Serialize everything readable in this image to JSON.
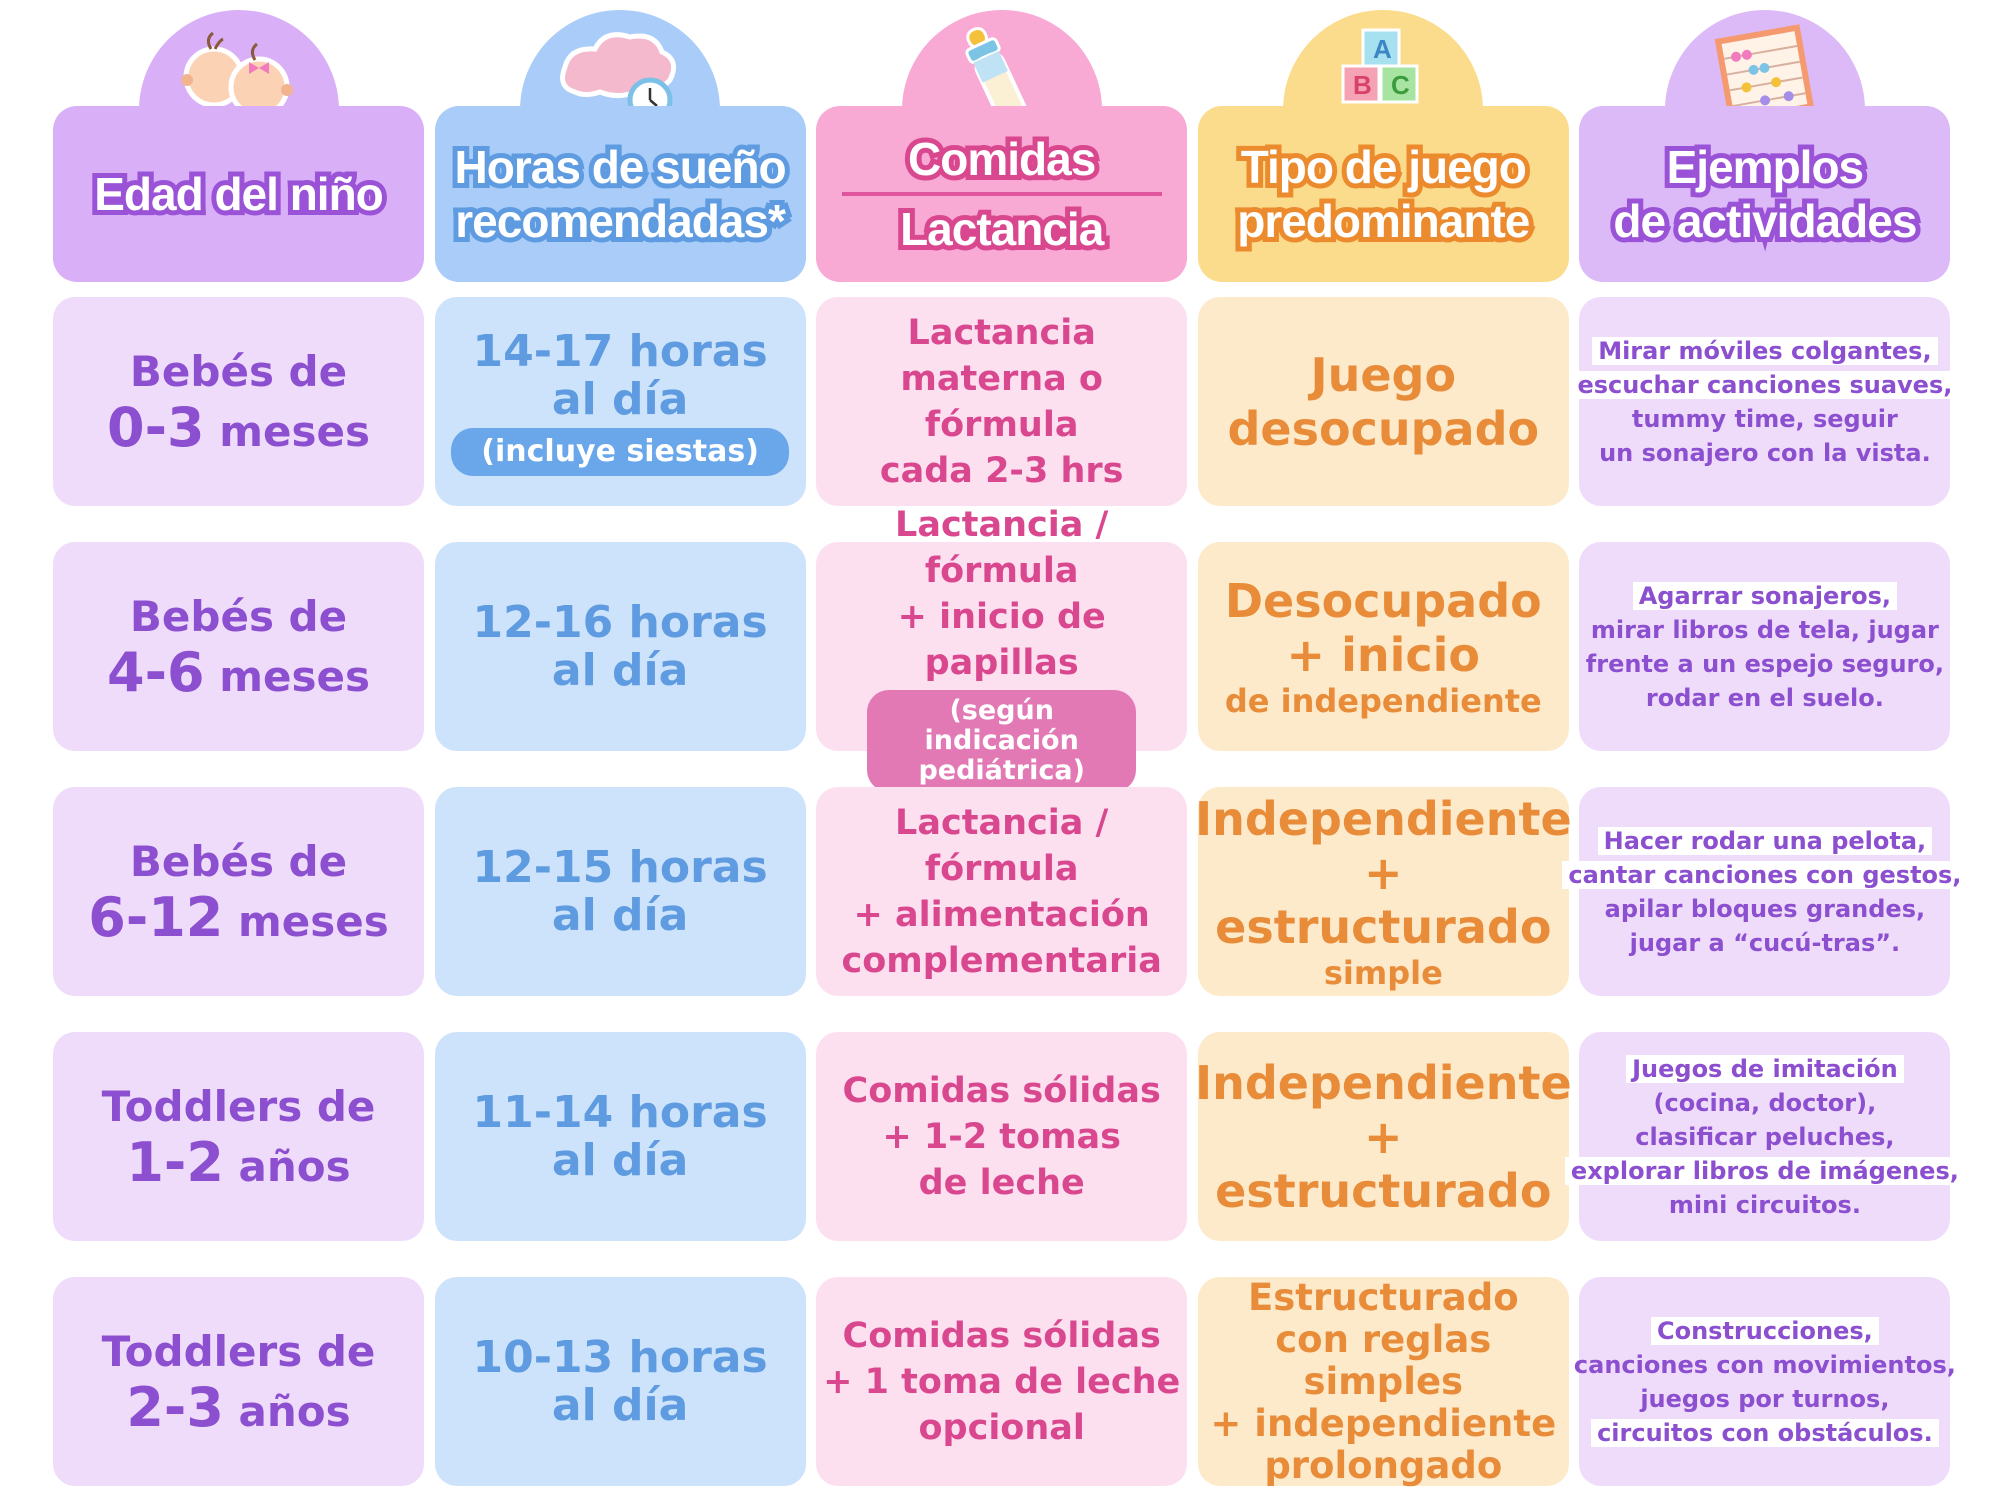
{
  "colors": {
    "age": "#8b4fcf",
    "sleep": "#5e9be0",
    "food": "#d9478f",
    "play": "#e88c3a",
    "activities": "#8b4fcf"
  },
  "headers": [
    {
      "lines": [
        "Edad del niño"
      ],
      "icon": "baby-faces-icon",
      "dome": "#d9b0f8",
      "bg": "#d9b0f8",
      "stroke": "#9a52d6"
    },
    {
      "lines": [
        "Horas de sueño",
        "recomendadas*"
      ],
      "icon": "cloud-clock-icon",
      "dome": "#a9cdf8",
      "bg": "#a9cdf8",
      "stroke": "#5e9be0"
    },
    {
      "lines": [
        "Comidas",
        "Lactancia"
      ],
      "divider": true,
      "icon": "baby-bottle-icon",
      "dome": "#f8a9d4",
      "bg": "#f8a9d4",
      "stroke": "#d9478f"
    },
    {
      "lines": [
        "Tipo de juego",
        "predominante"
      ],
      "icon": "abc-blocks-icon",
      "dome": "#fbdc8c",
      "bg": "#fbdc8c",
      "stroke": "#ec8a2e"
    },
    {
      "lines": [
        "Ejemplos",
        "de actividades"
      ],
      "icon": "abacus-icon",
      "dome": "#dcbaf8",
      "bg": "#dcbaf8",
      "stroke": "#9a52d6"
    }
  ],
  "rows": [
    {
      "age": {
        "prefix": "Bebés de",
        "num": "0-3",
        "unit": "meses"
      },
      "sleep": {
        "lines": [
          "14-17 horas",
          "al día"
        ],
        "pill": "(incluye siestas)"
      },
      "food": {
        "lines": [
          "Lactancia",
          "materna o fórmula",
          "cada 2-3 hrs"
        ]
      },
      "play": {
        "big": [
          "Juego",
          "desocupado"
        ],
        "small": ""
      },
      "activities": {
        "lines": [
          "Mirar móviles colgantes,",
          "escuchar canciones suaves,",
          "tummy time, seguir",
          "un sonajero con la vista."
        ],
        "highlight": [
          true,
          true,
          false,
          false
        ]
      }
    },
    {
      "age": {
        "prefix": "Bebés de",
        "num": "4-6",
        "unit": "meses"
      },
      "sleep": {
        "lines": [
          "12-16 horas",
          "al día"
        ]
      },
      "food": {
        "lines": [
          "Lactancia / fórmula",
          "+ inicio de papillas"
        ],
        "pill": "(según indicación pediátrica)"
      },
      "play": {
        "big": [
          "Desocupado",
          "+ inicio"
        ],
        "small": "de independiente"
      },
      "activities": {
        "lines": [
          "Agarrar sonajeros,",
          "mirar libros de tela, jugar",
          "frente a un espejo seguro,",
          "rodar en el suelo."
        ],
        "highlight": [
          true,
          false,
          false,
          false
        ]
      }
    },
    {
      "age": {
        "prefix": "Bebés de",
        "num": "6-12",
        "unit": "meses"
      },
      "sleep": {
        "lines": [
          "12-15 horas",
          "al día"
        ]
      },
      "food": {
        "lines": [
          "Lactancia / fórmula",
          "+ alimentación",
          "complementaria"
        ]
      },
      "play": {
        "big": [
          "Independiente",
          "+ estructurado"
        ],
        "small": "simple"
      },
      "activities": {
        "lines": [
          "Hacer rodar una pelota,",
          "cantar canciones con gestos,",
          "apilar bloques grandes,",
          "jugar a “cucú-tras”."
        ],
        "highlight": [
          true,
          true,
          false,
          false
        ]
      }
    },
    {
      "age": {
        "prefix": "Toddlers de",
        "num": "1-2",
        "unit": "años"
      },
      "sleep": {
        "lines": [
          "11-14 horas",
          "al día"
        ]
      },
      "food": {
        "lines": [
          "Comidas sólidas",
          "+ 1-2 tomas",
          "de leche"
        ]
      },
      "play": {
        "big": [
          "Independiente",
          "+ estructurado"
        ],
        "small": ""
      },
      "activities": {
        "lines": [
          "Juegos de imitación",
          "(cocina, doctor),",
          "clasificar peluches,",
          "explorar libros de imágenes,",
          "mini circuitos."
        ],
        "highlight": [
          true,
          false,
          false,
          true,
          false
        ]
      }
    },
    {
      "age": {
        "prefix": "Toddlers de",
        "num": "2-3",
        "unit": "años"
      },
      "sleep": {
        "lines": [
          "10-13 horas",
          "al día"
        ]
      },
      "food": {
        "lines": [
          "Comidas sólidas",
          "+ 1 toma de leche",
          "opcional"
        ]
      },
      "play": {
        "medium": [
          "Estructurado",
          "con reglas simples",
          "+ independiente",
          "prolongado"
        ]
      },
      "activities": {
        "lines": [
          "Construcciones,",
          "canciones con movimientos,",
          "juegos por turnos,",
          "circuitos con obstáculos."
        ],
        "highlight": [
          true,
          false,
          false,
          true
        ]
      }
    }
  ]
}
